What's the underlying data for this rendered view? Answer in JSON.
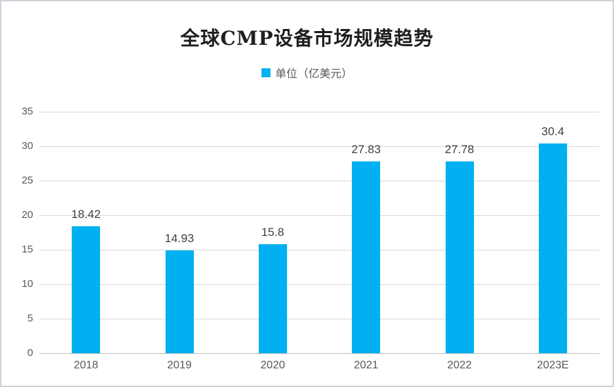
{
  "chart_data": {
    "type": "bar",
    "title": "全球CMP设备市场规模趋势",
    "legend": {
      "label": "单位（亿美元）",
      "position": "top-center"
    },
    "categories": [
      "2018",
      "2019",
      "2020",
      "2021",
      "2022",
      "2023E"
    ],
    "values": [
      18.42,
      14.93,
      15.8,
      27.83,
      27.78,
      30.4
    ],
    "value_labels": [
      "18.42",
      "14.93",
      "15.8",
      "27.83",
      "27.78",
      "30.4"
    ],
    "xlabel": "",
    "ylabel": "",
    "ylim": [
      0,
      35
    ],
    "yticks": [
      0,
      5,
      10,
      15,
      20,
      25,
      30,
      35
    ],
    "grid": true,
    "colors": {
      "bar": "#00B0F0",
      "gridline": "#d9d9d9",
      "axis_line": "#bfbfbf",
      "tick_text": "#595959",
      "value_text": "#404040",
      "title_text": "#1f1f1f",
      "frame_border": "#ccd3da"
    }
  }
}
